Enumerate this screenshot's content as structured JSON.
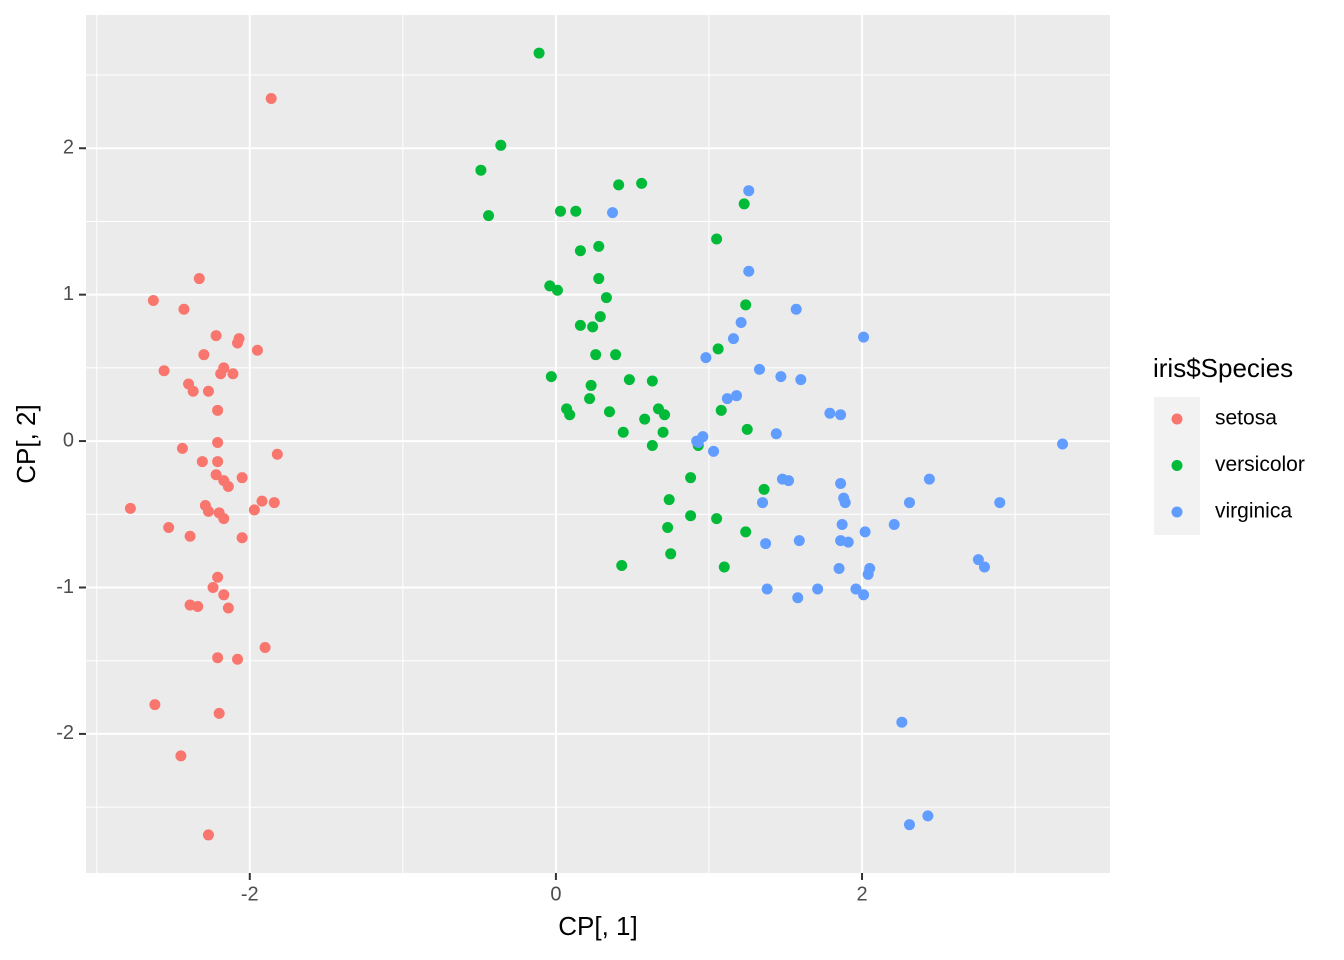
{
  "chart_data": {
    "type": "scatter",
    "xlabel": "CP[, 1]",
    "ylabel": "CP[, 2]",
    "legend_title": "iris$Species",
    "legend_position": "right",
    "xlim": [
      -3.07,
      3.62
    ],
    "ylim": [
      -2.95,
      2.91
    ],
    "xticks": [
      -2,
      0,
      2
    ],
    "yticks": [
      -2,
      -1,
      0,
      1,
      2
    ],
    "xminor": [
      -3,
      -1,
      1,
      3
    ],
    "yminor": [
      -2.5,
      -1.5,
      -0.5,
      0.5,
      1.5,
      2.5
    ],
    "grid": true,
    "series": [
      {
        "name": "setosa",
        "color": "#F8766D",
        "x": [
          -1.86,
          -2.33,
          -2.63,
          -2.43,
          -2.22,
          -2.07,
          -2.08,
          -1.95,
          -2.3,
          -2.56,
          -2.17,
          -2.19,
          -2.11,
          -2.4,
          -2.37,
          -2.27,
          -2.21,
          -2.21,
          -2.44,
          -1.82,
          -2.31,
          -2.21,
          -2.22,
          -2.05,
          -2.17,
          -2.14,
          -1.92,
          -1.84,
          -2.29,
          -1.97,
          -2.78,
          -2.27,
          -2.2,
          -2.17,
          -2.53,
          -2.39,
          -2.05,
          -2.21,
          -2.24,
          -2.17,
          -2.39,
          -2.34,
          -2.14,
          -1.9,
          -2.21,
          -2.08,
          -2.62,
          -2.2,
          -2.45,
          -2.27
        ],
        "y": [
          2.34,
          1.11,
          0.96,
          0.9,
          0.72,
          0.7,
          0.67,
          0.62,
          0.59,
          0.48,
          0.5,
          0.46,
          0.46,
          0.39,
          0.34,
          0.34,
          0.21,
          -0.01,
          -0.05,
          -0.09,
          -0.14,
          -0.14,
          -0.23,
          -0.25,
          -0.27,
          -0.31,
          -0.41,
          -0.42,
          -0.44,
          -0.47,
          -0.46,
          -0.48,
          -0.49,
          -0.53,
          -0.59,
          -0.65,
          -0.66,
          -0.93,
          -1.0,
          -1.05,
          -1.12,
          -1.13,
          -1.14,
          -1.41,
          -1.48,
          -1.49,
          -1.8,
          -1.86,
          -2.15,
          -2.69
        ]
      },
      {
        "name": "versicolor",
        "color": "#00BA38",
        "x": [
          -0.11,
          -0.36,
          -0.49,
          -0.44,
          0.41,
          0.56,
          0.03,
          0.13,
          1.23,
          0.28,
          0.16,
          1.05,
          0.28,
          -0.04,
          0.01,
          0.33,
          1.24,
          0.29,
          0.16,
          0.24,
          1.06,
          0.26,
          0.39,
          -0.03,
          0.48,
          0.63,
          0.23,
          0.22,
          0.07,
          0.09,
          0.35,
          0.67,
          0.71,
          1.08,
          0.58,
          0.44,
          0.7,
          1.25,
          0.63,
          0.93,
          0.88,
          1.36,
          0.74,
          0.88,
          1.05,
          0.73,
          1.24,
          0.75,
          0.43,
          1.1
        ],
        "y": [
          2.65,
          2.02,
          1.85,
          1.54,
          1.75,
          1.76,
          1.57,
          1.57,
          1.62,
          1.33,
          1.3,
          1.38,
          1.11,
          1.06,
          1.03,
          0.98,
          0.93,
          0.85,
          0.79,
          0.78,
          0.63,
          0.59,
          0.59,
          0.44,
          0.42,
          0.41,
          0.38,
          0.29,
          0.22,
          0.18,
          0.2,
          0.22,
          0.18,
          0.21,
          0.15,
          0.06,
          0.06,
          0.08,
          -0.03,
          -0.03,
          -0.25,
          -0.33,
          -0.4,
          -0.51,
          -0.53,
          -0.59,
          -0.62,
          -0.77,
          -0.85,
          -0.86
        ]
      },
      {
        "name": "virginica",
        "color": "#619CFF",
        "x": [
          1.26,
          0.37,
          1.26,
          1.57,
          1.21,
          2.01,
          1.16,
          0.98,
          1.33,
          1.47,
          1.6,
          1.18,
          1.12,
          1.79,
          1.86,
          1.44,
          0.96,
          0.93,
          0.92,
          3.31,
          1.03,
          1.48,
          1.52,
          2.44,
          1.86,
          1.88,
          1.89,
          2.31,
          2.9,
          1.35,
          2.21,
          1.87,
          2.02,
          1.37,
          1.59,
          1.86,
          1.91,
          2.76,
          2.8,
          1.85,
          2.05,
          2.04,
          1.38,
          1.71,
          1.96,
          2.01,
          1.58,
          2.26,
          2.43,
          2.31
        ],
        "y": [
          1.71,
          1.56,
          1.16,
          0.9,
          0.81,
          0.71,
          0.7,
          0.57,
          0.49,
          0.44,
          0.42,
          0.31,
          0.29,
          0.19,
          0.18,
          0.05,
          0.03,
          -0.01,
          0.0,
          -0.02,
          -0.07,
          -0.26,
          -0.27,
          -0.26,
          -0.29,
          -0.39,
          -0.42,
          -0.42,
          -0.42,
          -0.42,
          -0.57,
          -0.57,
          -0.62,
          -0.7,
          -0.68,
          -0.68,
          -0.69,
          -0.81,
          -0.86,
          -0.87,
          -0.87,
          -0.91,
          -1.01,
          -1.01,
          -1.01,
          -1.05,
          -1.07,
          -1.92,
          -2.56,
          -2.62
        ]
      }
    ]
  }
}
